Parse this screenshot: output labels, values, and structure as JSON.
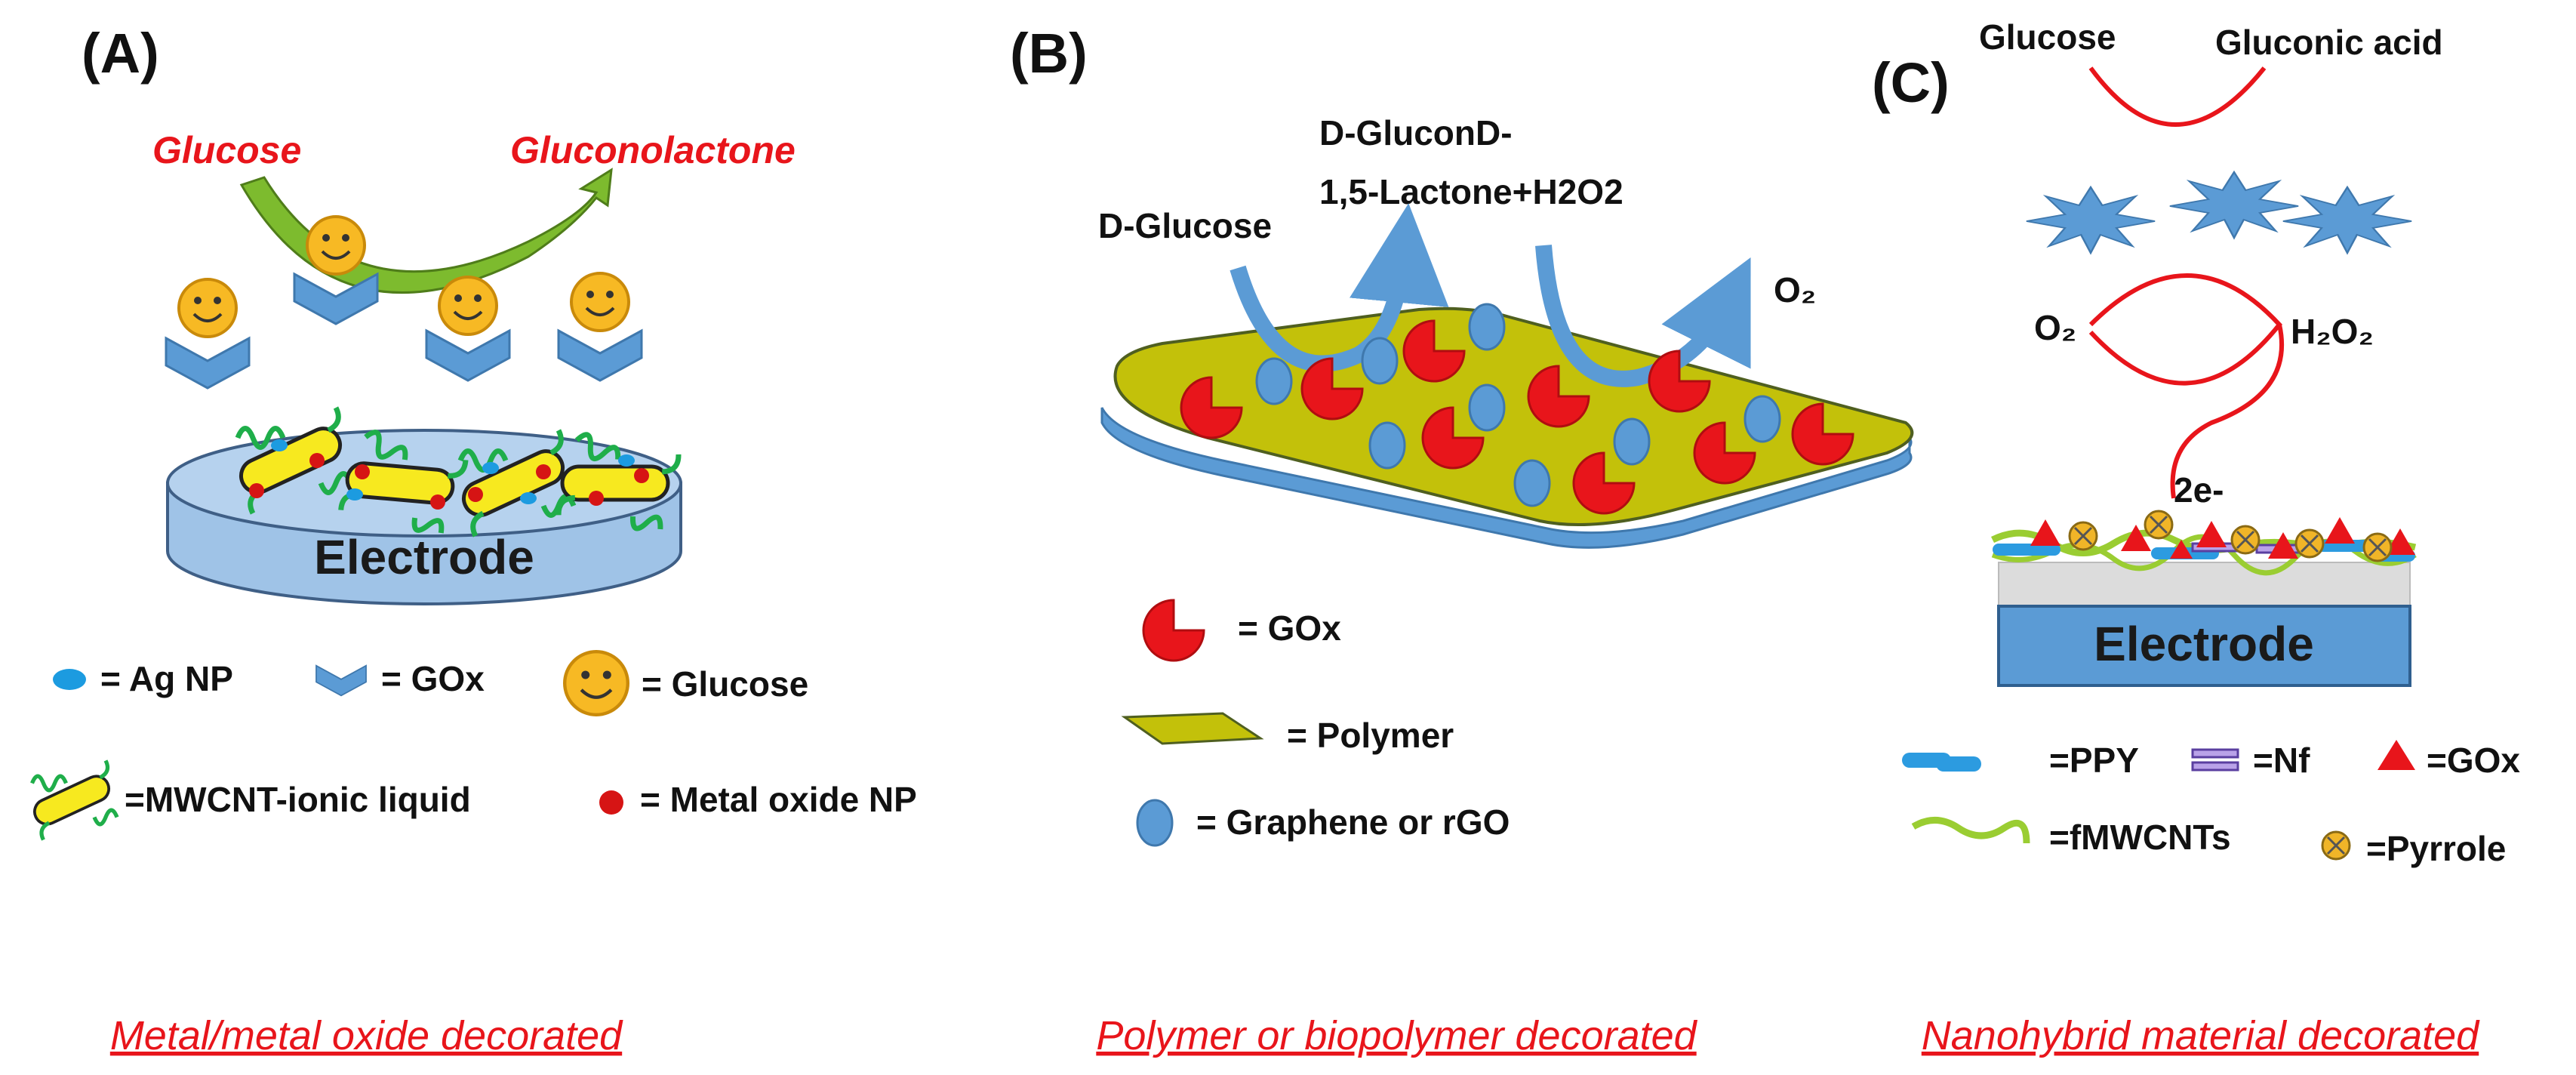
{
  "colors": {
    "red": "#e8151b",
    "blue": "#5b9bd5",
    "polymer": "#c3c10a",
    "electrode": "#9fc3e7",
    "green_arrow": "#7dbb2e",
    "smiley": "#f7b924"
  },
  "panel_a": {
    "letter": "(A)",
    "substrate": "Glucose",
    "product": "Gluconolactone",
    "electrode": "Electrode",
    "legend": {
      "ag_np": "= Ag NP",
      "gox": "= GOx",
      "glucose": "= Glucose",
      "mwcnt": "=MWCNT-ionic liquid",
      "metal_oxide": "= Metal oxide NP"
    },
    "caption": "Metal/metal oxide decorated"
  },
  "panel_b": {
    "letter": "(B)",
    "substrate": "D-Glucose",
    "product_line1": "D-GluconD-",
    "product_line2": "1,5-Lactone+H2O2",
    "oxygen": "O₂",
    "legend": {
      "gox": "= GOx",
      "polymer": "= Polymer",
      "graphene": "= Graphene or rGO"
    },
    "caption": "Polymer or biopolymer decorated"
  },
  "panel_c": {
    "letter": "(C)",
    "substrate": "Glucose",
    "product": "Gluconic acid",
    "oxygen": "O₂",
    "peroxide": "H₂O₂",
    "electrons": "2e-",
    "electrode": "Electrode",
    "legend": {
      "ppy": "=PPY",
      "nf": "=Nf",
      "gox": "=GOx",
      "fmwcnts": "=fMWCNTs",
      "pyrrole": "=Pyrrole"
    },
    "caption": "Nanohybrid material decorated"
  }
}
